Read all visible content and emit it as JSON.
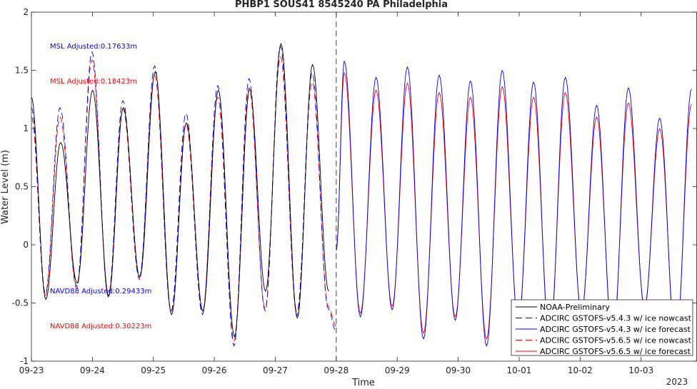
{
  "chart_data": {
    "type": "line",
    "title": "PHBP1 SOUS41 8545240 PA Philadelphia",
    "xlabel": "Time",
    "ylabel": "Water Level (m)",
    "ylim": [
      -1,
      2
    ],
    "xlim": [
      "2023-09-23T00:00",
      "2023-10-03T22:00"
    ],
    "y_ticks": [
      "-1",
      "-0.5",
      "0",
      "0.5",
      "1",
      "1.5",
      "2"
    ],
    "x_ticks": [
      "09-23",
      "09-24",
      "09-25",
      "09-26",
      "09-27",
      "09-28",
      "09-29",
      "09-30",
      "10-01",
      "10-02",
      "10-03"
    ],
    "x_year_label": "2023",
    "forecast_start": "2023-09-28T00:00",
    "grid": false,
    "legend_position": "bottom-right",
    "annotations": [
      {
        "text": "MSL Adjusted:0.17633m",
        "color": "#0000ff"
      },
      {
        "text": "MSL Adjusted:0.18423m",
        "color": "#ff0000"
      },
      {
        "text": "NAVD88 Adjusted:0.29433m",
        "color": "#0000ff"
      },
      {
        "text": "NAVD88 Adjusted:0.30223m",
        "color": "#ff0000"
      }
    ],
    "series": [
      {
        "name": "NOAA-Preliminary",
        "color": "#000000",
        "style": "solid",
        "highs": [
          [
            "2023-09-23T00:00",
            1.27
          ],
          [
            "2023-09-23T11:30",
            0.88
          ],
          [
            "2023-09-24T00:05",
            1.33
          ],
          [
            "2023-09-24T12:10",
            1.18
          ],
          [
            "2023-09-25T00:45",
            1.49
          ],
          [
            "2023-09-25T13:00",
            1.05
          ],
          [
            "2023-09-26T01:35",
            1.33
          ],
          [
            "2023-09-26T13:55",
            1.34
          ],
          [
            "2023-09-27T02:15",
            1.73
          ],
          [
            "2023-09-27T14:40",
            1.55
          ]
        ],
        "lows": [
          [
            "2023-09-23T05:40",
            -0.47
          ],
          [
            "2023-09-23T18:00",
            -0.33
          ],
          [
            "2023-09-24T06:25",
            -0.44
          ],
          [
            "2023-09-24T18:40",
            -0.28
          ],
          [
            "2023-09-25T07:10",
            -0.6
          ],
          [
            "2023-09-25T19:30",
            -0.57
          ],
          [
            "2023-09-26T07:55",
            -0.79
          ],
          [
            "2023-09-26T20:10",
            -0.4
          ],
          [
            "2023-09-27T08:40",
            -0.63
          ],
          [
            "2023-09-27T21:00",
            -0.4
          ]
        ]
      },
      {
        "name": "ADCIRC GSTOFS-v5.4.3 w/ ice nowcast",
        "color": "#0000ff",
        "style": "dashed",
        "highs": [
          [
            "2023-09-23T00:00",
            1.18
          ],
          [
            "2023-09-23T11:15",
            1.18
          ],
          [
            "2023-09-23T23:50",
            1.66
          ],
          [
            "2023-09-24T12:00",
            1.24
          ],
          [
            "2023-09-25T00:30",
            1.54
          ],
          [
            "2023-09-25T12:50",
            1.13
          ],
          [
            "2023-09-26T01:20",
            1.37
          ],
          [
            "2023-09-26T13:40",
            1.43
          ],
          [
            "2023-09-27T02:00",
            1.71
          ],
          [
            "2023-09-27T14:30",
            1.48
          ]
        ],
        "lows": [
          [
            "2023-09-23T05:30",
            -0.42
          ],
          [
            "2023-09-23T17:50",
            -0.36
          ],
          [
            "2023-09-24T06:15",
            -0.44
          ],
          [
            "2023-09-24T18:30",
            -0.28
          ],
          [
            "2023-09-25T07:00",
            -0.57
          ],
          [
            "2023-09-25T19:20",
            -0.6
          ],
          [
            "2023-09-26T07:45",
            -0.87
          ],
          [
            "2023-09-26T20:00",
            -0.57
          ],
          [
            "2023-09-27T08:30",
            -0.61
          ],
          [
            "2023-09-27T20:50",
            -0.55
          ],
          [
            "2023-09-28T00:00",
            -0.75
          ]
        ]
      },
      {
        "name": "ADCIRC GSTOFS-v5.4.3 w/ ice forecast",
        "color": "#0000ff",
        "style": "solid",
        "highs": [
          [
            "2023-09-28T00:00",
            -0.05
          ],
          [
            "2023-09-28T03:10",
            1.58
          ],
          [
            "2023-09-28T15:40",
            1.44
          ],
          [
            "2023-09-29T04:00",
            1.53
          ],
          [
            "2023-09-29T16:30",
            1.46
          ],
          [
            "2023-09-30T04:50",
            1.41
          ],
          [
            "2023-09-30T17:20",
            1.5
          ],
          [
            "2023-10-01T05:40",
            1.4
          ],
          [
            "2023-10-01T18:10",
            1.44
          ],
          [
            "2023-10-02T06:30",
            1.2
          ],
          [
            "2023-10-02T19:00",
            1.35
          ],
          [
            "2023-10-03T07:20",
            1.09
          ],
          [
            "2023-10-03T19:50",
            1.34
          ]
        ],
        "lows": [
          [
            "2023-09-28T09:30",
            -0.62
          ],
          [
            "2023-09-28T22:00",
            -0.56
          ],
          [
            "2023-09-29T10:20",
            -0.81
          ],
          [
            "2023-09-29T22:50",
            -0.65
          ],
          [
            "2023-09-30T11:10",
            -0.87
          ],
          [
            "2023-09-30T23:40",
            -0.7
          ],
          [
            "2023-10-01T12:00",
            -0.85
          ],
          [
            "2023-10-02T00:30",
            -0.6
          ],
          [
            "2023-10-02T12:50",
            -0.86
          ],
          [
            "2023-10-03T01:20",
            -0.55
          ],
          [
            "2023-10-03T13:40",
            -0.9
          ]
        ]
      },
      {
        "name": "ADCIRC GSTOFS-v5.6.5 w/ ice nowcast",
        "color": "#ff0000",
        "style": "dashed",
        "highs": [
          [
            "2023-09-23T00:00",
            1.1
          ],
          [
            "2023-09-23T11:15",
            1.1
          ],
          [
            "2023-09-23T23:50",
            1.59
          ],
          [
            "2023-09-24T12:00",
            1.17
          ],
          [
            "2023-09-25T00:30",
            1.46
          ],
          [
            "2023-09-25T12:50",
            1.04
          ],
          [
            "2023-09-26T01:20",
            1.27
          ],
          [
            "2023-09-26T13:40",
            1.35
          ],
          [
            "2023-09-27T02:00",
            1.62
          ],
          [
            "2023-09-27T14:30",
            1.4
          ]
        ],
        "lows": [
          [
            "2023-09-23T05:30",
            -0.44
          ],
          [
            "2023-09-23T17:50",
            -0.38
          ],
          [
            "2023-09-24T06:15",
            -0.45
          ],
          [
            "2023-09-24T18:30",
            -0.3
          ],
          [
            "2023-09-25T07:00",
            -0.58
          ],
          [
            "2023-09-25T19:20",
            -0.58
          ],
          [
            "2023-09-26T07:45",
            -0.83
          ],
          [
            "2023-09-26T20:00",
            -0.55
          ],
          [
            "2023-09-27T08:30",
            -0.58
          ],
          [
            "2023-09-27T20:50",
            -0.53
          ],
          [
            "2023-09-28T00:00",
            -0.7
          ]
        ]
      },
      {
        "name": "ADCIRC GSTOFS-v5.6.5 w/ ice forecast",
        "color": "#ff0000",
        "style": "solid",
        "highs": [
          [
            "2023-09-28T00:00",
            -0.02
          ],
          [
            "2023-09-28T03:10",
            1.48
          ],
          [
            "2023-09-28T15:40",
            1.33
          ],
          [
            "2023-09-29T04:00",
            1.39
          ],
          [
            "2023-09-29T16:30",
            1.31
          ],
          [
            "2023-09-30T04:50",
            1.27
          ],
          [
            "2023-09-30T17:20",
            1.36
          ],
          [
            "2023-10-01T05:40",
            1.27
          ],
          [
            "2023-10-01T18:10",
            1.31
          ],
          [
            "2023-10-02T06:30",
            1.1
          ],
          [
            "2023-10-02T19:00",
            1.22
          ],
          [
            "2023-10-03T07:20",
            1.0
          ],
          [
            "2023-10-03T19:50",
            1.21
          ]
        ],
        "lows": [
          [
            "2023-09-28T09:30",
            -0.59
          ],
          [
            "2023-09-28T22:00",
            -0.53
          ],
          [
            "2023-09-29T10:20",
            -0.76
          ],
          [
            "2023-09-29T22:50",
            -0.62
          ],
          [
            "2023-09-30T11:10",
            -0.81
          ],
          [
            "2023-09-30T23:40",
            -0.67
          ],
          [
            "2023-10-01T12:00",
            -0.79
          ],
          [
            "2023-10-02T00:30",
            -0.58
          ],
          [
            "2023-10-02T12:50",
            -0.8
          ],
          [
            "2023-10-03T01:20",
            -0.53
          ],
          [
            "2023-10-03T13:40",
            -0.84
          ]
        ]
      }
    ]
  }
}
